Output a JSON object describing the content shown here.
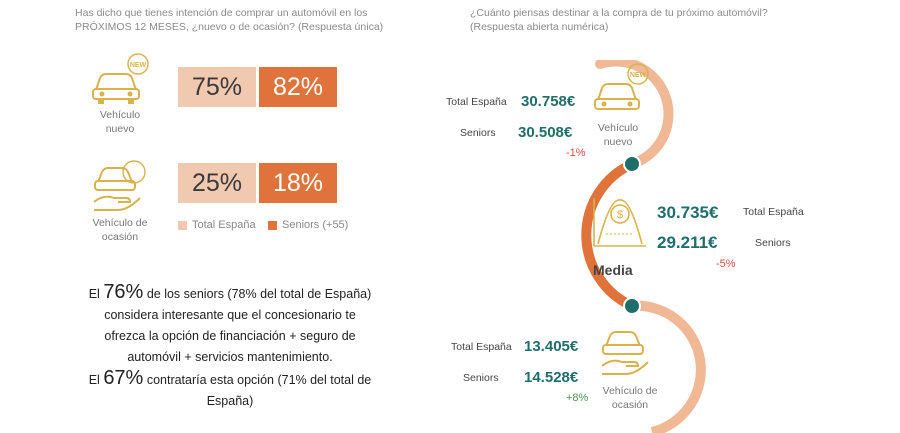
{
  "left": {
    "question": "Has dicho que tienes intención de comprar un automóvil en los PRÓXIMOS 12 MESES, ¿nuevo o de ocasión? (Respuesta única)",
    "new_badge": "NEW",
    "rows": [
      {
        "label_line1": "Vehículo",
        "label_line2": "nuevo",
        "total": "75%",
        "seniors": "82%"
      },
      {
        "label_line1": "Vehículo de",
        "label_line2": "ocasión",
        "total": "25%",
        "seniors": "18%"
      }
    ],
    "legend": {
      "total": "Total España",
      "seniors": "Seniors (+55)"
    },
    "colors": {
      "total": "#f1c9b0",
      "seniors": "#e0733b"
    },
    "paragraph": {
      "p1_prefix": "El ",
      "p1_big": "76%",
      "p1_line1_rest": " de los seniors (78% del total de España)",
      "p1_line2": "considera interesante que el concesionario te",
      "p1_line3": "ofrezca la opción de financiación + seguro de",
      "p1_line4": "automóvil + servicios mantenimiento.",
      "p2_prefix": "El ",
      "p2_big": "67%",
      "p2_line1_rest": " contrataría esta opción (71% del total de",
      "p2_line2": "España)"
    }
  },
  "right": {
    "question": "¿Cuánto piensas destinar a la compra de tu próximo automóvil? (Respuesta abierta numérica)",
    "new_badge": "NEW",
    "nuevo": {
      "label_line1": "Vehículo",
      "label_line2": "nuevo",
      "total_label": "Total España",
      "total_value": "30.758€",
      "seniors_label": "Seniors",
      "seniors_value": "30.508€",
      "diff": "-1%"
    },
    "media": {
      "label": "Media",
      "total_value": "30.735€",
      "total_label": "Total España",
      "seniors_value": "29.211€",
      "seniors_label": "Seniors",
      "diff": "-5%"
    },
    "ocasion": {
      "label_line1": "Vehículo de",
      "label_line2": "ocasión",
      "total_label": "Total España",
      "total_value": "13.405€",
      "seniors_label": "Seniors",
      "seniors_value": "14.528€",
      "diff": "+8%"
    },
    "colors": {
      "curve_light": "#f1b896",
      "curve_dark": "#e0733b",
      "node": "#1f6e6a"
    }
  }
}
